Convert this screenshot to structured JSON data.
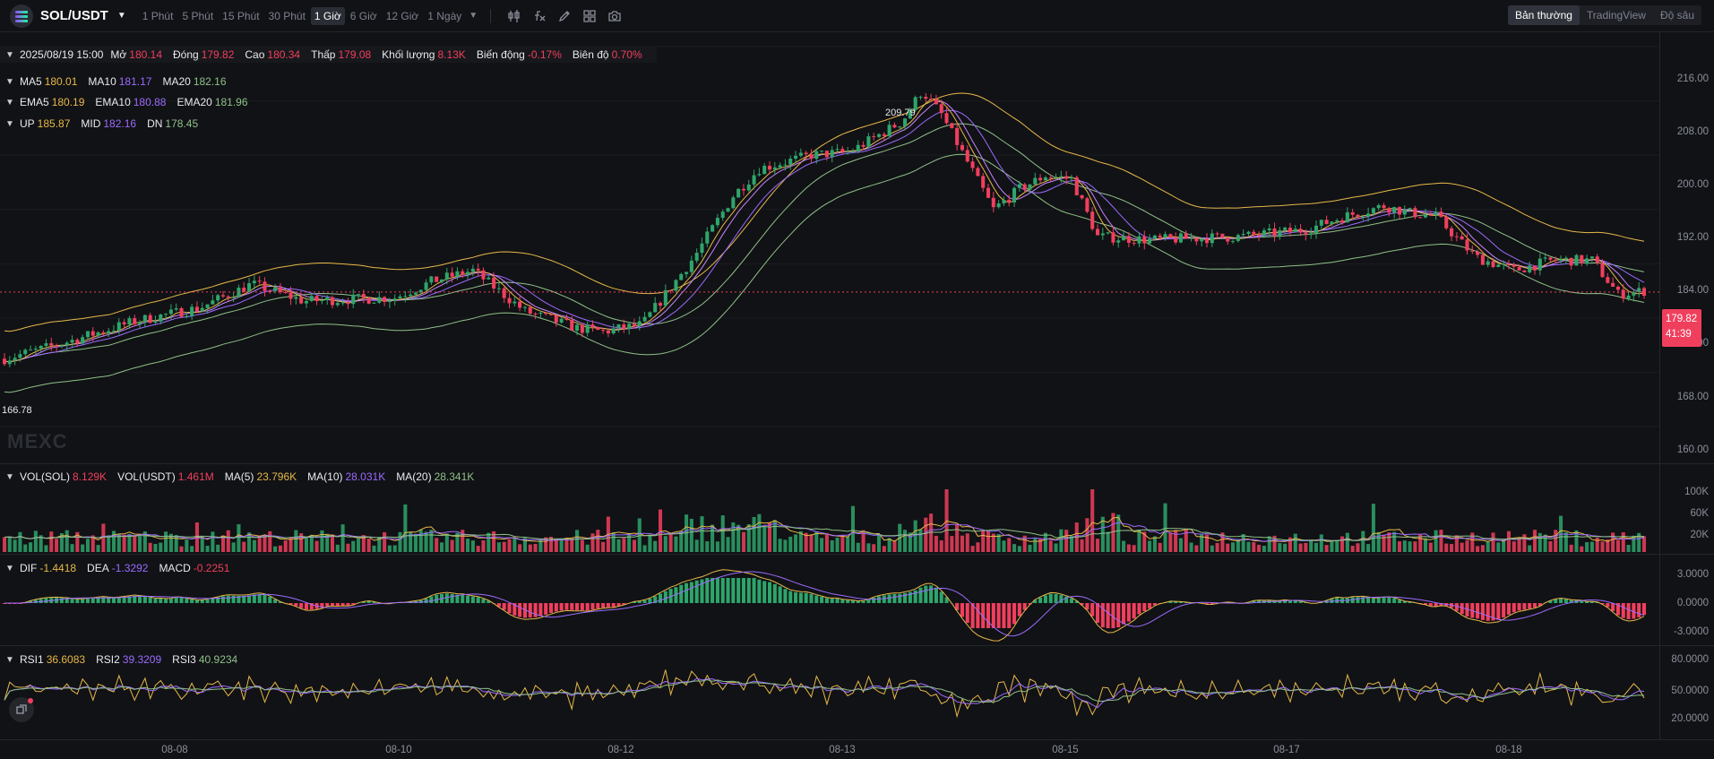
{
  "colors": {
    "up": "#2ea56b",
    "down": "#f03f5d",
    "ma5": "#e6b84a",
    "ma10": "#9b6bff",
    "ma20": "#8ec089",
    "grid": "#1a1c21",
    "crosshair": "#f03f5d"
  },
  "header": {
    "symbol": "SOL/USDT",
    "intervals": [
      "1 Phút",
      "5 Phút",
      "15 Phút",
      "30 Phút",
      "1 Giờ",
      "6 Giờ",
      "12 Giờ",
      "1 Ngày"
    ],
    "active_interval": "1 Giờ",
    "tool_icons": [
      "candle-settings-icon",
      "formula-icon",
      "pencil-icon",
      "layout-icon",
      "camera-icon"
    ],
    "views": [
      "Bản thường",
      "TradingView",
      "Độ sâu"
    ],
    "active_view": "Bản thường"
  },
  "ohlc": {
    "date": "2025/08/19 15:00",
    "open_label": "Mở",
    "open": "180.14",
    "close_label": "Đóng",
    "close": "179.82",
    "high_label": "Cao",
    "high": "180.34",
    "low_label": "Thấp",
    "low": "179.08",
    "volume_label": "Khối lượng",
    "volume": "8.13K",
    "change_label": "Biến động",
    "change": "-0.17%",
    "amplitude_label": "Biên độ",
    "amplitude": "0.70%"
  },
  "ma": {
    "ma5_label": "MA5",
    "ma5": "180.01",
    "ma10_label": "MA10",
    "ma10": "181.17",
    "ma20_label": "MA20",
    "ma20": "182.16"
  },
  "ema": {
    "ema5_label": "EMA5",
    "ema5": "180.19",
    "ema10_label": "EMA10",
    "ema10": "180.88",
    "ema20_label": "EMA20",
    "ema20": "181.96"
  },
  "boll": {
    "up_label": "UP",
    "up": "185.87",
    "mid_label": "MID",
    "mid": "182.16",
    "dn_label": "DN",
    "dn": "178.45"
  },
  "main_chart": {
    "y_ticks": [
      "216.00",
      "208.00",
      "200.00",
      "192.00",
      "184.00",
      "176.00",
      "168.00",
      "160.00"
    ],
    "last_price": "179.82",
    "countdown": "41:39",
    "high_marker": "209.79",
    "low_marker": "166.78",
    "watermark": "MEXC"
  },
  "volume": {
    "vol_sol_label": "VOL(SOL)",
    "vol_sol": "8.129K",
    "vol_usdt_label": "VOL(USDT)",
    "vol_usdt": "1.461M",
    "ma5_label": "MA(5)",
    "ma5": "23.796K",
    "ma10_label": "MA(10)",
    "ma10": "28.031K",
    "ma20_label": "MA(20)",
    "ma20": "28.341K",
    "y_ticks": [
      "100K",
      "60K",
      "20K"
    ]
  },
  "macd": {
    "dif_label": "DIF",
    "dif": "-1.4418",
    "dea_label": "DEA",
    "dea": "-1.3292",
    "macd_label": "MACD",
    "macd": "-0.2251",
    "y_ticks": [
      "3.0000",
      "0.0000",
      "-3.0000"
    ]
  },
  "rsi": {
    "rsi1_label": "RSI1",
    "rsi1": "36.6083",
    "rsi2_label": "RSI2",
    "rsi2": "39.3209",
    "rsi3_label": "RSI3",
    "rsi3": "40.9234",
    "y_ticks": [
      "80.0000",
      "50.0000",
      "20.0000"
    ]
  },
  "x_axis": [
    "08-08",
    "08-10",
    "08-12",
    "08-13",
    "08-15",
    "08-17",
    "08-18"
  ]
}
